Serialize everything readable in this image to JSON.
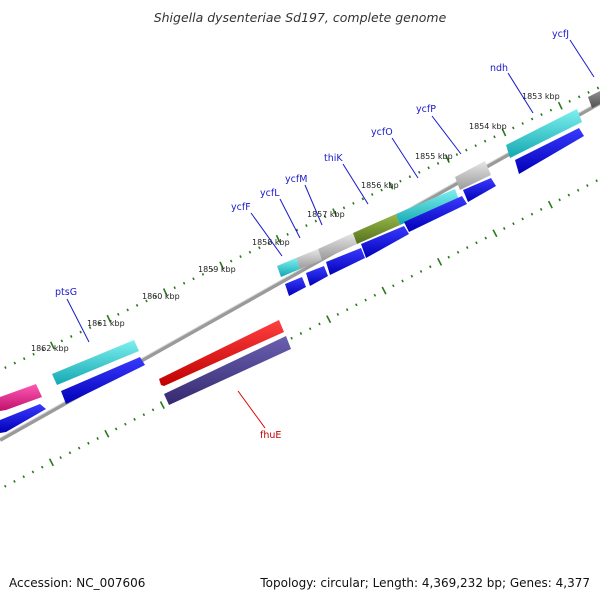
{
  "title": "Shigella dysenteriae Sd197, complete genome",
  "accession_label": "Accession: NC_007606",
  "topology_label": "Topology: circular; Length: 4,369,232 bp; Genes: 4,377",
  "kbp_labels": [
    "1853 kbp",
    "1854 kbp",
    "1855 kbp",
    "1856 kbp",
    "1857 kbp",
    "1858 kbp",
    "1859 kbp",
    "1860 kbp",
    "1861 kbp",
    "1862 kbp"
  ],
  "genes": {
    "ycfJ": "ycfJ",
    "ndh": "ndh",
    "ycfP": "ycfP",
    "ycfO": "ycfO",
    "thiK": "thiK",
    "ycfM": "ycfM",
    "ycfL": "ycfL",
    "ycfF": "ycfF",
    "ptsG": "ptsG",
    "fhuE": "fhuE"
  },
  "colors": {
    "backbone": "#888888",
    "tick": "#2a7a1a",
    "cds_strand": "#0000e0",
    "cyan": "#1ec8c8",
    "gray": "#b8b8b8",
    "olive": "#6e8c2a",
    "magenta": "#e0208c",
    "red": "#e00000",
    "purple": "#4a3f8c",
    "label_line": "#1a1acc",
    "label_line_red": "#e00000"
  }
}
